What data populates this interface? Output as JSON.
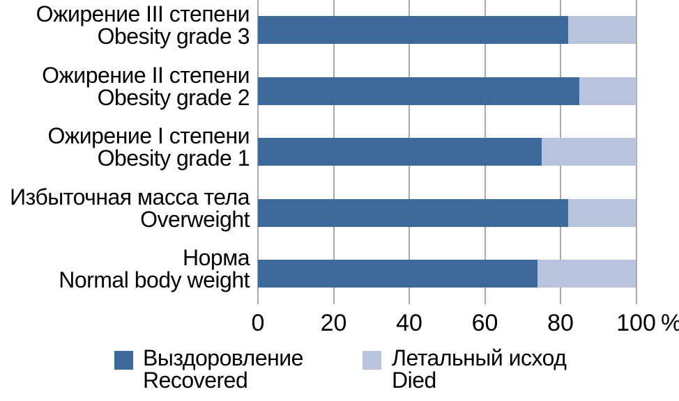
{
  "chart_data": {
    "type": "bar",
    "orientation": "horizontal",
    "stacked": true,
    "title": "",
    "xlabel": "",
    "ylabel": "",
    "xlim": [
      0,
      100
    ],
    "x_ticks": [
      0,
      20,
      40,
      60,
      80,
      100
    ],
    "x_tick_labels": [
      "0",
      "20",
      "40",
      "60",
      "80",
      "100"
    ],
    "x_unit_label": "%",
    "grid": "vertical",
    "gridline_color": "#A8A8A8",
    "legend_position": "bottom",
    "categories": [
      {
        "label_ru": "Ожирение III степени",
        "label_en": "Obesity grade 3"
      },
      {
        "label_ru": "Ожирение II степени",
        "label_en": "Obesity grade 2"
      },
      {
        "label_ru": "Ожирение I степени",
        "label_en": "Obesity grade 1"
      },
      {
        "label_ru": "Избыточная масса тела",
        "label_en": "Overweight"
      },
      {
        "label_ru": "Норма",
        "label_en": "Normal body weight"
      }
    ],
    "series": [
      {
        "key": "recovered",
        "name_ru": "Выздоровление",
        "name_en": "Recovered",
        "color": "#3E699B",
        "values": [
          82,
          85,
          75,
          82,
          74
        ]
      },
      {
        "key": "died",
        "name_ru": "Летальный исход",
        "name_en": "Died",
        "color": "#B8C3DC",
        "values": [
          18,
          15,
          25,
          18,
          26
        ]
      }
    ]
  }
}
